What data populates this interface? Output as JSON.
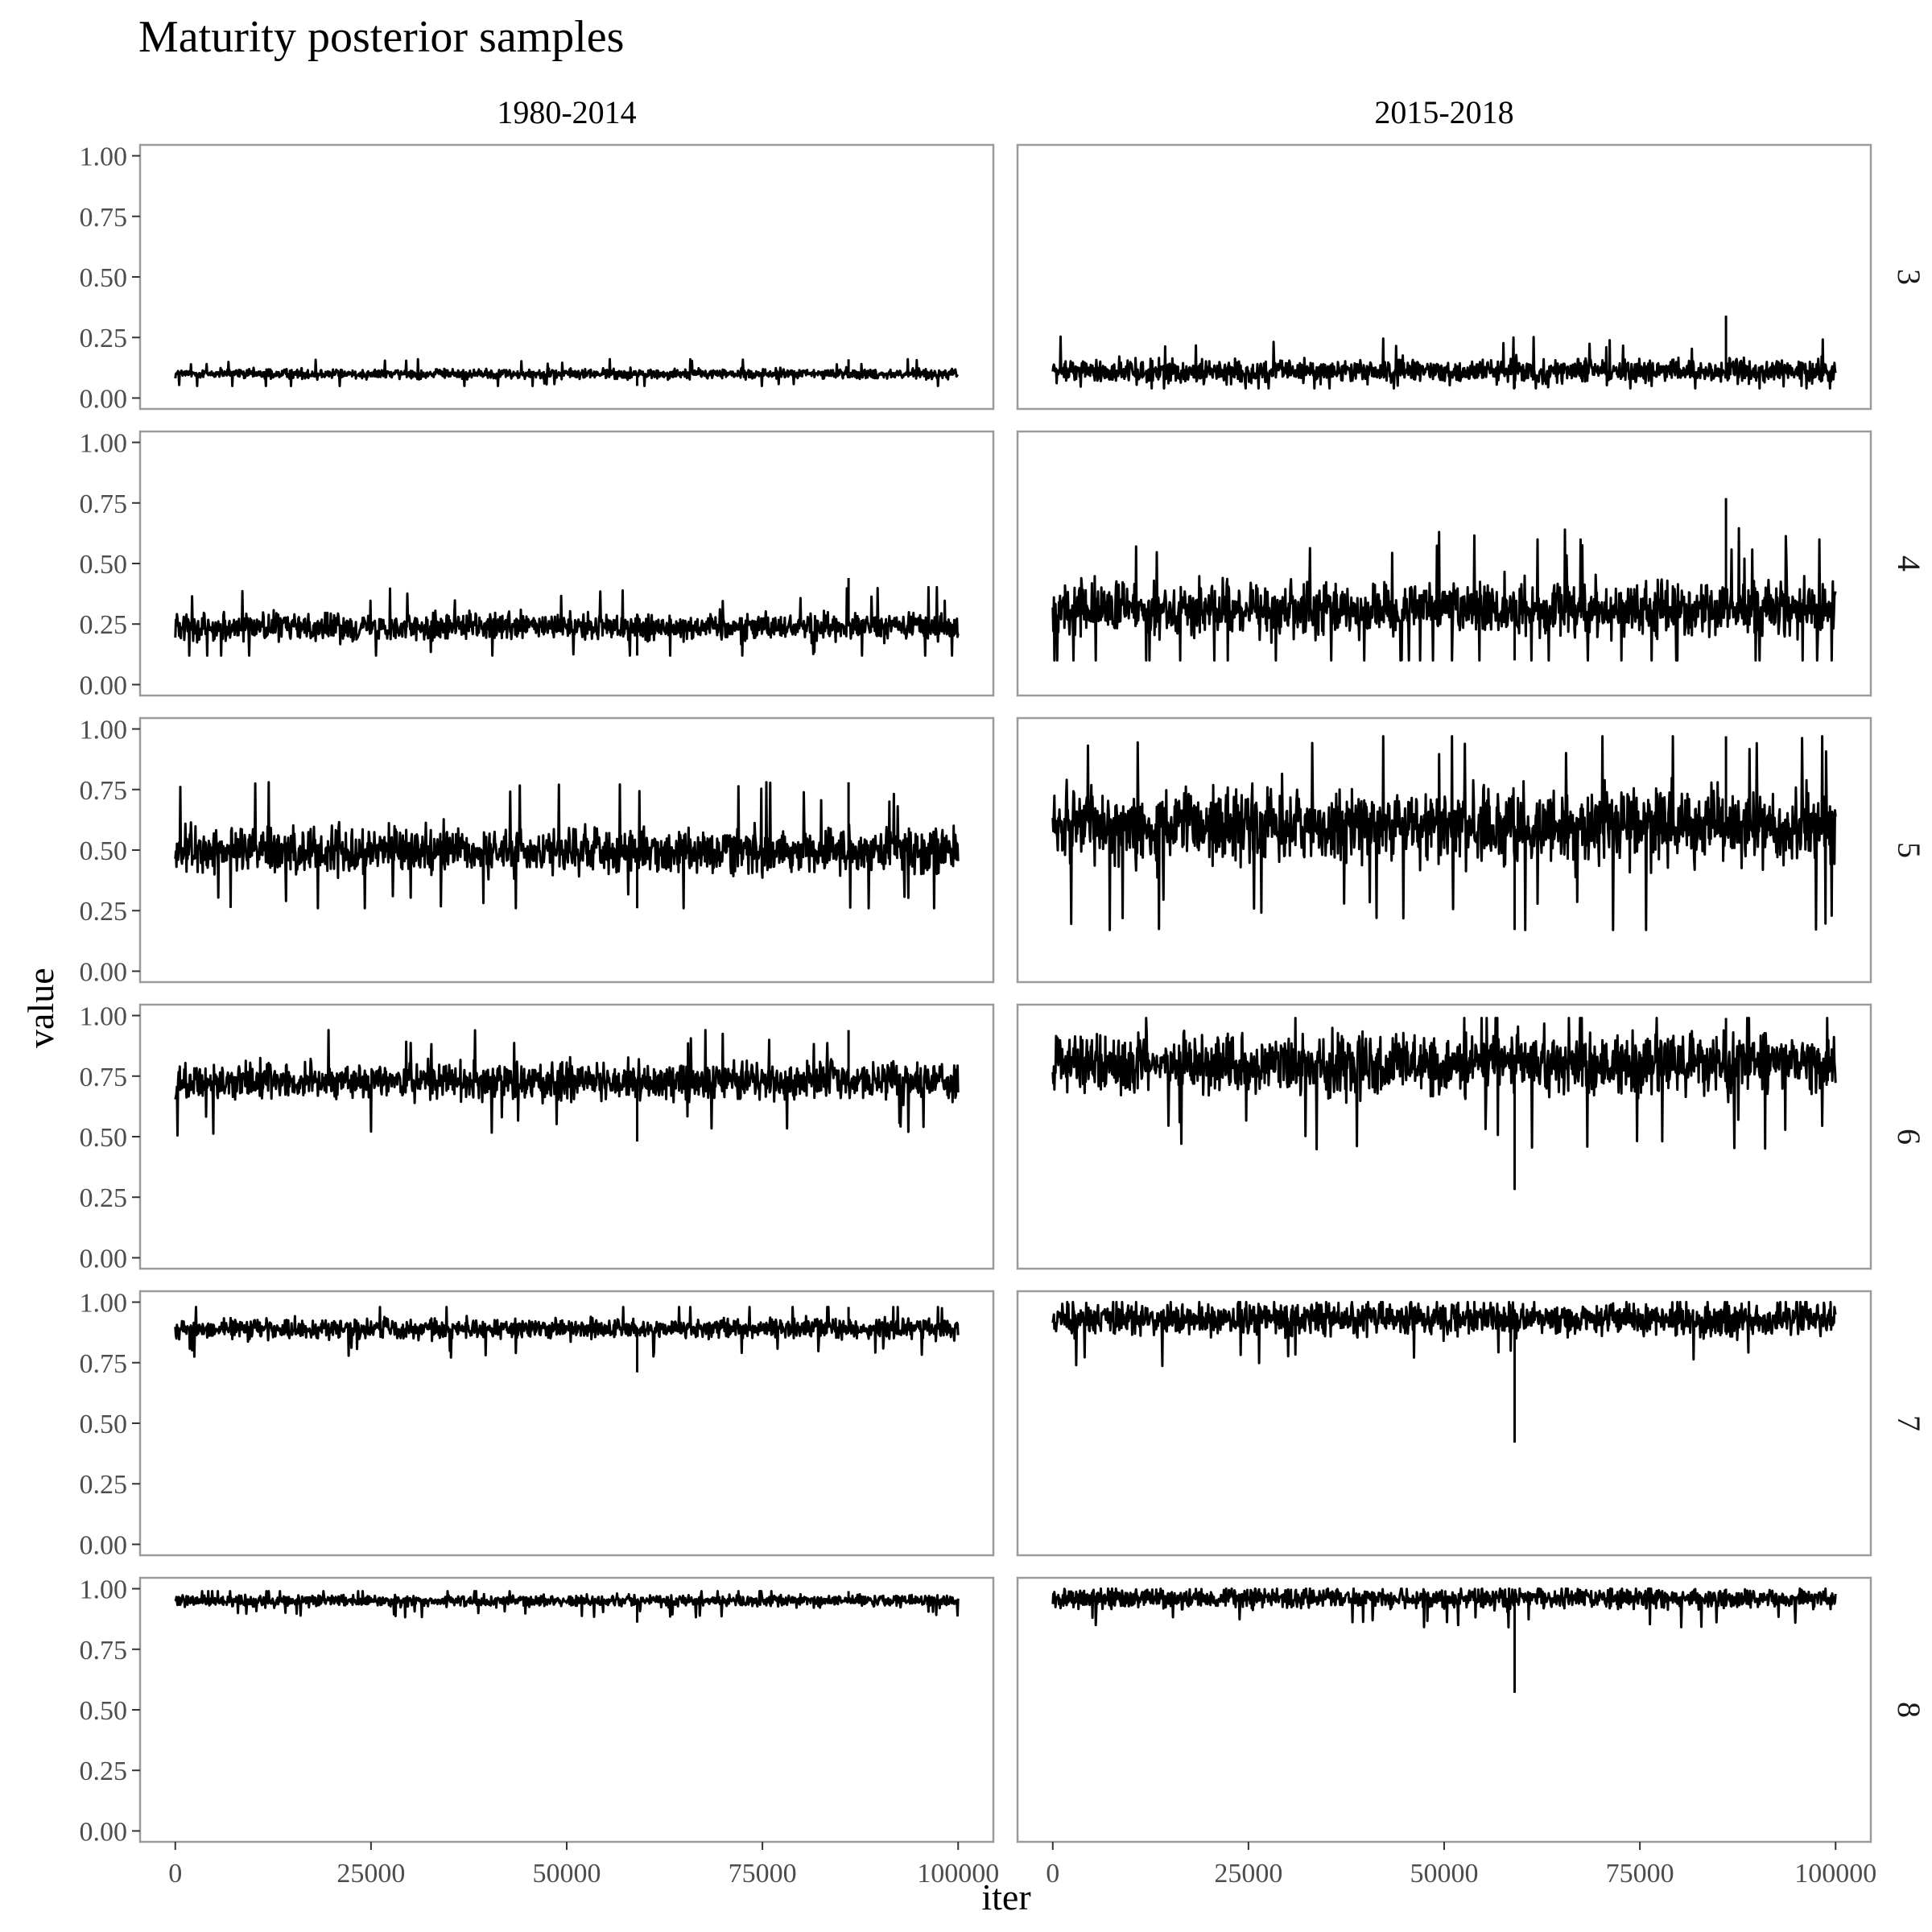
{
  "chart_data": {
    "type": "line",
    "title": "Maturity posterior samples",
    "xlabel": "iter",
    "ylabel": "value",
    "facet_columns": [
      "1980-2014",
      "2015-2018"
    ],
    "facet_rows": [
      "3",
      "4",
      "5",
      "6",
      "7",
      "8"
    ],
    "x_ticks": [
      0,
      25000,
      50000,
      75000,
      100000
    ],
    "y_ticks": [
      0.0,
      0.25,
      0.5,
      0.75,
      1.0
    ],
    "y_tick_labels": [
      "0.00",
      "0.25",
      "0.50",
      "0.75",
      "1.00"
    ],
    "xlim": [
      0,
      100000
    ],
    "ylim": [
      0,
      1
    ],
    "grid": false,
    "line_color": "#000000",
    "panels": [
      {
        "row": "3",
        "column": "1980-2014",
        "iter_range": [
          0,
          100000
        ],
        "center": 0.1,
        "typical_range": [
          0.07,
          0.13
        ],
        "min": 0.05,
        "max": 0.16
      },
      {
        "row": "3",
        "column": "2015-2018",
        "iter_range": [
          0,
          100000
        ],
        "center": 0.11,
        "typical_range": [
          0.06,
          0.2
        ],
        "min": 0.04,
        "max": 0.34
      },
      {
        "row": "4",
        "column": "1980-2014",
        "iter_range": [
          0,
          100000
        ],
        "center": 0.24,
        "typical_range": [
          0.17,
          0.33
        ],
        "min": 0.12,
        "max": 0.44
      },
      {
        "row": "4",
        "column": "2015-2018",
        "iter_range": [
          0,
          100000
        ],
        "center": 0.31,
        "typical_range": [
          0.18,
          0.5
        ],
        "min": 0.1,
        "max": 0.77
      },
      {
        "row": "5",
        "column": "1980-2014",
        "iter_range": [
          0,
          100000
        ],
        "center": 0.5,
        "typical_range": [
          0.37,
          0.64
        ],
        "min": 0.26,
        "max": 0.78
      },
      {
        "row": "5",
        "column": "2015-2018",
        "iter_range": [
          0,
          100000
        ],
        "center": 0.6,
        "typical_range": [
          0.4,
          0.85
        ],
        "min": 0.17,
        "max": 0.97
      },
      {
        "row": "6",
        "column": "1980-2014",
        "iter_range": [
          0,
          100000
        ],
        "center": 0.73,
        "typical_range": [
          0.62,
          0.84
        ],
        "min": 0.48,
        "max": 0.94
      },
      {
        "row": "6",
        "column": "2015-2018",
        "iter_range": [
          0,
          100000
        ],
        "center": 0.8,
        "typical_range": [
          0.62,
          0.97
        ],
        "min": 0.28,
        "max": 0.99
      },
      {
        "row": "7",
        "column": "1980-2014",
        "iter_range": [
          0,
          100000
        ],
        "center": 0.89,
        "typical_range": [
          0.82,
          0.94
        ],
        "min": 0.71,
        "max": 0.98
      },
      {
        "row": "7",
        "column": "2015-2018",
        "iter_range": [
          0,
          100000
        ],
        "center": 0.93,
        "typical_range": [
          0.8,
          0.995
        ],
        "min": 0.42,
        "max": 1.0
      },
      {
        "row": "8",
        "column": "1980-2014",
        "iter_range": [
          0,
          100000
        ],
        "center": 0.95,
        "typical_range": [
          0.91,
          0.975
        ],
        "min": 0.86,
        "max": 0.99
      },
      {
        "row": "8",
        "column": "2015-2018",
        "iter_range": [
          0,
          100000
        ],
        "center": 0.96,
        "typical_range": [
          0.88,
          0.995
        ],
        "min": 0.57,
        "max": 1.0
      }
    ]
  }
}
